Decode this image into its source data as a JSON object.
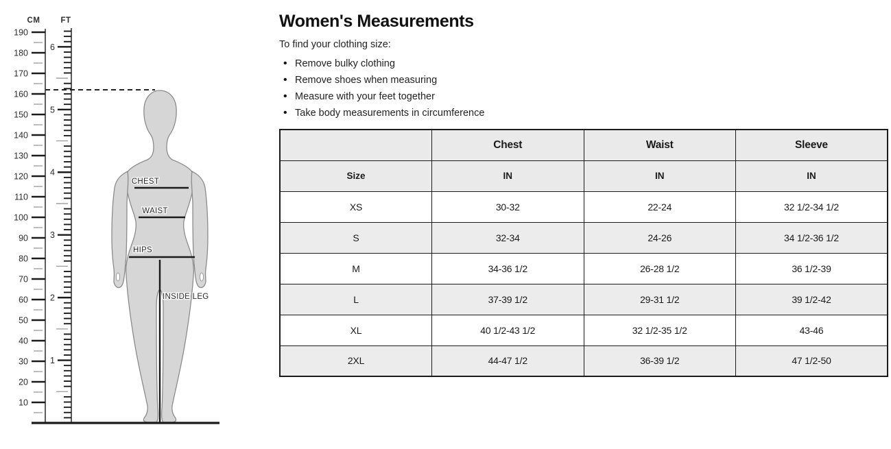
{
  "diagram": {
    "cm_label": "CM",
    "ft_label": "FT",
    "cm_ticks": [
      190,
      180,
      170,
      160,
      150,
      140,
      130,
      120,
      110,
      100,
      90,
      80,
      70,
      60,
      50,
      40,
      30,
      20,
      10
    ],
    "ft_tick_labels": [
      6,
      5,
      4,
      3,
      2,
      1
    ],
    "height_line_cm": 162,
    "body_labels": {
      "chest": "CHEST",
      "waist": "WAIST",
      "hips": "HIPS",
      "inside_leg": "INSIDE LEG"
    },
    "colors": {
      "silhouette_fill": "#d6d6d6",
      "silhouette_stroke": "#8b8b8b",
      "tick_major": "#1a1a1a",
      "tick_minor": "#9a9a9a",
      "measure_line": "#1a1a1a"
    }
  },
  "content": {
    "title": "Women's Measurements",
    "intro": "To find your clothing size:",
    "instructions": [
      "Remove bulky clothing",
      "Remove shoes when measuring",
      "Measure with your feet together",
      "Take body measurements in circumference"
    ]
  },
  "size_table": {
    "column_headers": [
      "",
      "Chest",
      "Waist",
      "Sleeve"
    ],
    "unit_row": {
      "size_label": "Size",
      "units": [
        "IN",
        "IN",
        "IN"
      ]
    },
    "rows": [
      {
        "size": "XS",
        "chest": "30-32",
        "waist": "22-24",
        "sleeve": "32 1/2-34 1/2"
      },
      {
        "size": "S",
        "chest": "32-34",
        "waist": "24-26",
        "sleeve": "34 1/2-36 1/2"
      },
      {
        "size": "M",
        "chest": "34-36 1/2",
        "waist": "26-28 1/2",
        "sleeve": "36 1/2-39"
      },
      {
        "size": "L",
        "chest": "37-39 1/2",
        "waist": "29-31 1/2",
        "sleeve": "39 1/2-42"
      },
      {
        "size": "XL",
        "chest": "40 1/2-43 1/2",
        "waist": "32 1/2-35 1/2",
        "sleeve": "43-46"
      },
      {
        "size": "2XL",
        "chest": "44-47 1/2",
        "waist": "36-39 1/2",
        "sleeve": "47 1/2-50"
      }
    ]
  }
}
